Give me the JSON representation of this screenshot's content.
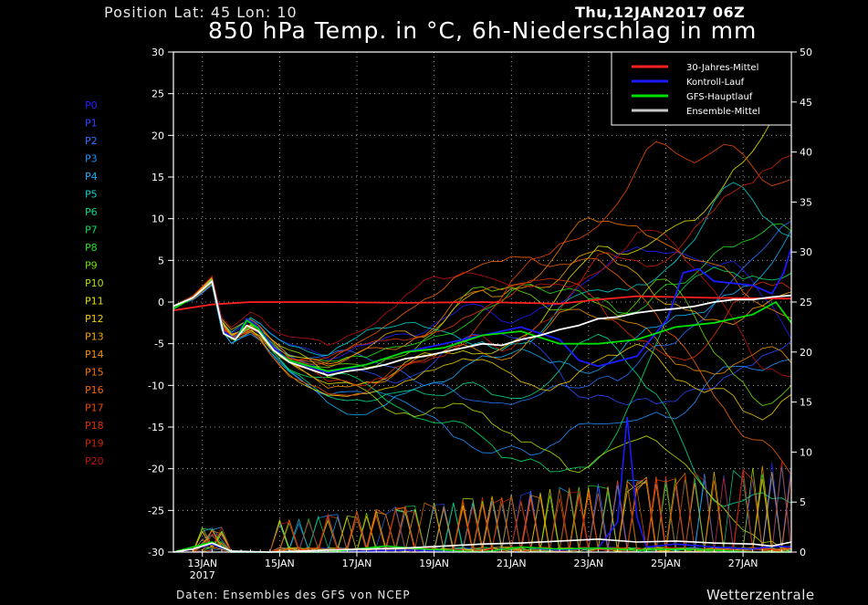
{
  "header": {
    "position": "Position   Lat: 45 Lon: 10",
    "run": "Thu,12JAN2017 06Z",
    "title": "850 hPa Temp. in °C, 6h-Niederschlag in mm"
  },
  "footer": {
    "source": "Daten: Ensembles des GFS von NCEP",
    "brand": "Wetterzentrale"
  },
  "chart_data": {
    "type": "line",
    "x_start": "2017-01-12T06:00Z",
    "x_end": "2017-01-28T06:00Z",
    "grid": true,
    "x_ticks": [
      {
        "date": "2017-01-13",
        "label": "13JAN",
        "sub": "2017"
      },
      {
        "date": "2017-01-15",
        "label": "15JAN",
        "sub": ""
      },
      {
        "date": "2017-01-17",
        "label": "17JAN",
        "sub": ""
      },
      {
        "date": "2017-01-19",
        "label": "19JAN",
        "sub": ""
      },
      {
        "date": "2017-01-21",
        "label": "21JAN",
        "sub": ""
      },
      {
        "date": "2017-01-23",
        "label": "23JAN",
        "sub": ""
      },
      {
        "date": "2017-01-25",
        "label": "25JAN",
        "sub": ""
      },
      {
        "date": "2017-01-27",
        "label": "27JAN",
        "sub": ""
      }
    ],
    "y_left": {
      "min": -30,
      "max": 30,
      "ticks": [
        30,
        25,
        20,
        15,
        10,
        5,
        0,
        -5,
        -10,
        -15,
        -20,
        -25,
        -30
      ]
    },
    "y_right": {
      "min": 0,
      "max": 50,
      "ticks": [
        50,
        45,
        40,
        35,
        30,
        25,
        20,
        15,
        10,
        5,
        0
      ]
    },
    "legend": {
      "placement": "top-right",
      "items": [
        {
          "name": "30-Jahres-Mittel",
          "color": "#ff2020"
        },
        {
          "name": "Kontroll-Lauf",
          "color": "#1a1aff"
        },
        {
          "name": "GFS-Hauptlauf",
          "color": "#00e000"
        },
        {
          "name": "Ensemble-Mittel",
          "color": "#c8c8c8"
        }
      ]
    },
    "members": [
      {
        "name": "P0",
        "color": "#2020ff"
      },
      {
        "name": "P1",
        "color": "#2848ff"
      },
      {
        "name": "P2",
        "color": "#2870ff"
      },
      {
        "name": "P3",
        "color": "#2090ff"
      },
      {
        "name": "P4",
        "color": "#10b0ff"
      },
      {
        "name": "P5",
        "color": "#00d0d0"
      },
      {
        "name": "P6",
        "color": "#00d890"
      },
      {
        "name": "P7",
        "color": "#00e060"
      },
      {
        "name": "P8",
        "color": "#20e020"
      },
      {
        "name": "P9",
        "color": "#70e000"
      },
      {
        "name": "P10",
        "color": "#b0e000"
      },
      {
        "name": "P11",
        "color": "#e0e000"
      },
      {
        "name": "P12",
        "color": "#f0c800"
      },
      {
        "name": "P13",
        "color": "#f0a800"
      },
      {
        "name": "P14",
        "color": "#f09000"
      },
      {
        "name": "P15",
        "color": "#f07800"
      },
      {
        "name": "P16",
        "color": "#f06000"
      },
      {
        "name": "P17",
        "color": "#e84800"
      },
      {
        "name": "P18",
        "color": "#e03000"
      },
      {
        "name": "P19",
        "color": "#d02000"
      },
      {
        "name": "P20",
        "color": "#c01010"
      }
    ],
    "temperature_series": [
      {
        "name": "30-Jahres-Mittel",
        "color": "#ff2020",
        "values": [
          [
            0.0,
            -1.0
          ],
          [
            1.0,
            -0.3
          ],
          [
            2.0,
            0.0
          ],
          [
            4.0,
            0.0
          ],
          [
            6.0,
            -0.1
          ],
          [
            8.0,
            0.0
          ],
          [
            10.0,
            -0.2
          ],
          [
            11.0,
            0.3
          ],
          [
            12.0,
            0.7
          ],
          [
            14.0,
            0.5
          ],
          [
            16.0,
            0.4
          ]
        ]
      },
      {
        "name": "Kontroll-Lauf",
        "color": "#1a1aff",
        "values": [
          [
            0.0,
            -0.5
          ],
          [
            0.5,
            0.5
          ],
          [
            1.0,
            2.5
          ],
          [
            1.3,
            -3.5
          ],
          [
            1.6,
            -4.5
          ],
          [
            1.9,
            -2.0
          ],
          [
            2.2,
            -3.0
          ],
          [
            2.6,
            -5.5
          ],
          [
            3.0,
            -7.0
          ],
          [
            4.0,
            -8.5
          ],
          [
            5.0,
            -7.5
          ],
          [
            6.0,
            -6.0
          ],
          [
            7.0,
            -5.0
          ],
          [
            8.0,
            -4.0
          ],
          [
            9.0,
            -3.0
          ],
          [
            10.0,
            -4.5
          ],
          [
            10.5,
            -7.0
          ],
          [
            11.0,
            -7.7
          ],
          [
            12.0,
            -6.5
          ],
          [
            12.8,
            -2.0
          ],
          [
            13.2,
            3.5
          ],
          [
            13.6,
            4.0
          ],
          [
            14.0,
            2.5
          ],
          [
            15.0,
            2.0
          ],
          [
            15.5,
            1.0
          ],
          [
            15.8,
            3.5
          ],
          [
            16.0,
            6.5
          ]
        ]
      },
      {
        "name": "GFS-Hauptlauf",
        "color": "#00e000",
        "values": [
          [
            0.0,
            -0.8
          ],
          [
            0.5,
            0.5
          ],
          [
            1.0,
            2.4
          ],
          [
            1.3,
            -3.8
          ],
          [
            1.6,
            -4.6
          ],
          [
            1.9,
            -2.2
          ],
          [
            2.2,
            -3.2
          ],
          [
            2.6,
            -5.8
          ],
          [
            3.0,
            -7.0
          ],
          [
            4.0,
            -8.3
          ],
          [
            5.0,
            -7.5
          ],
          [
            6.0,
            -6.0
          ],
          [
            7.0,
            -5.5
          ],
          [
            8.0,
            -4.0
          ],
          [
            9.0,
            -3.5
          ],
          [
            10.0,
            -5.0
          ],
          [
            11.0,
            -5.0
          ],
          [
            12.0,
            -4.5
          ],
          [
            13.0,
            -3.0
          ],
          [
            14.0,
            -2.5
          ],
          [
            15.0,
            -1.5
          ],
          [
            15.6,
            0.0
          ],
          [
            16.0,
            -2.5
          ]
        ]
      },
      {
        "name": "Ensemble-Mittel",
        "color": "#ffffff",
        "values": [
          [
            0.0,
            -0.5
          ],
          [
            0.5,
            0.5
          ],
          [
            1.0,
            2.5
          ],
          [
            1.3,
            -3.8
          ],
          [
            1.6,
            -4.5
          ],
          [
            1.9,
            -2.8
          ],
          [
            2.2,
            -3.5
          ],
          [
            2.6,
            -5.8
          ],
          [
            3.0,
            -7.2
          ],
          [
            3.5,
            -8.0
          ],
          [
            4.0,
            -8.8
          ],
          [
            4.5,
            -8.3
          ],
          [
            5.0,
            -8.0
          ],
          [
            5.5,
            -7.5
          ],
          [
            6.0,
            -6.8
          ],
          [
            6.5,
            -6.5
          ],
          [
            7.0,
            -6.0
          ],
          [
            7.5,
            -5.5
          ],
          [
            8.0,
            -5.0
          ],
          [
            8.5,
            -5.2
          ],
          [
            9.0,
            -4.5
          ],
          [
            9.5,
            -4.0
          ],
          [
            10.0,
            -3.3
          ],
          [
            10.5,
            -2.8
          ],
          [
            11.0,
            -2.0
          ],
          [
            11.5,
            -1.8
          ],
          [
            12.0,
            -1.3
          ],
          [
            12.5,
            -1.0
          ],
          [
            13.0,
            -0.8
          ],
          [
            13.5,
            -0.5
          ],
          [
            14.0,
            0.0
          ],
          [
            14.5,
            0.3
          ],
          [
            15.0,
            0.3
          ],
          [
            15.5,
            0.6
          ],
          [
            16.0,
            0.8
          ]
        ]
      }
    ],
    "precipitation_series": [
      {
        "name": "Kontroll-Lauf",
        "color": "#1a1aff",
        "values": [
          [
            0.0,
            0
          ],
          [
            0.5,
            0.3
          ],
          [
            1.0,
            0.8
          ],
          [
            1.5,
            0
          ],
          [
            4.0,
            0
          ],
          [
            6.0,
            0.2
          ],
          [
            8.0,
            0
          ],
          [
            9.0,
            0.5
          ],
          [
            10.0,
            0.2
          ],
          [
            11.0,
            0.4
          ],
          [
            11.5,
            3.0
          ],
          [
            11.75,
            13.5
          ],
          [
            12.0,
            3.5
          ],
          [
            12.25,
            0.5
          ],
          [
            13.0,
            0.8
          ],
          [
            14.0,
            0.5
          ],
          [
            15.0,
            0.3
          ],
          [
            15.5,
            0.6
          ],
          [
            16.0,
            0.5
          ]
        ]
      },
      {
        "name": "GFS-Hauptlauf",
        "color": "#00e000",
        "values": [
          [
            0.0,
            0
          ],
          [
            1.0,
            1.0
          ],
          [
            1.5,
            0
          ],
          [
            4.0,
            0
          ],
          [
            5.5,
            0.6
          ],
          [
            6.5,
            0.3
          ],
          [
            8.0,
            0
          ],
          [
            9.0,
            0.5
          ],
          [
            10.0,
            0.3
          ],
          [
            11.0,
            0.4
          ],
          [
            12.0,
            0.2
          ],
          [
            13.0,
            0.3
          ],
          [
            14.0,
            0.2
          ],
          [
            15.0,
            0
          ],
          [
            16.0,
            0
          ]
        ]
      },
      {
        "name": "Ensemble-Mittel",
        "color": "#ffffff",
        "values": [
          [
            0.0,
            0
          ],
          [
            0.5,
            0.3
          ],
          [
            1.0,
            0.9
          ],
          [
            1.5,
            0.1
          ],
          [
            2.5,
            0
          ],
          [
            4.0,
            0.2
          ],
          [
            5.0,
            0.3
          ],
          [
            6.0,
            0.4
          ],
          [
            7.0,
            0.6
          ],
          [
            8.0,
            0.8
          ],
          [
            9.0,
            0.9
          ],
          [
            10.0,
            1.1
          ],
          [
            11.0,
            1.3
          ],
          [
            12.0,
            1.0
          ],
          [
            13.0,
            1.1
          ],
          [
            14.0,
            0.9
          ],
          [
            15.0,
            0.8
          ],
          [
            15.5,
            0.6
          ],
          [
            16.0,
            1.0
          ]
        ]
      }
    ]
  }
}
